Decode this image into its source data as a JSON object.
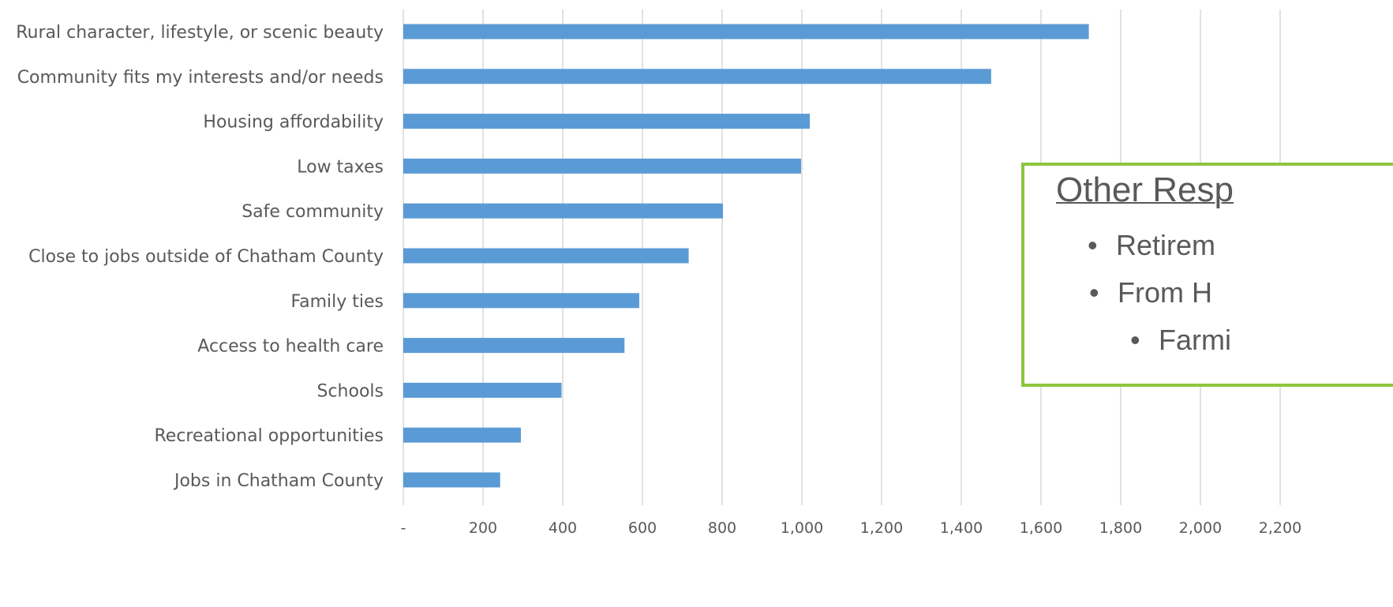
{
  "chart_data": {
    "type": "bar",
    "orientation": "horizontal",
    "categories": [
      "Rural character, lifestyle, or scenic beauty",
      "Community fits my interests and/or needs",
      "Housing affordability",
      "Low taxes",
      "Safe community",
      "Close to jobs outside of Chatham County",
      "Family ties",
      "Access to health care",
      "Schools",
      "Recreational opportunities",
      "Jobs in Chatham County"
    ],
    "values": [
      1720,
      1475,
      1020,
      998,
      802,
      716,
      592,
      555,
      397,
      295,
      243
    ],
    "xticks": [
      0,
      200,
      400,
      600,
      800,
      1000,
      1200,
      1400,
      1600,
      1800,
      2000,
      2200
    ],
    "xtick_labels": [
      "-",
      "200",
      "400",
      "600",
      "800",
      "1,000",
      "1,200",
      "1,400",
      "1,600",
      "1,800",
      "2,000",
      "2,200"
    ],
    "xlim": [
      0,
      2200
    ],
    "grid": "vertical",
    "bar_color": "#5b9bd5",
    "title": "",
    "xlabel": "",
    "ylabel": ""
  },
  "other_responses": {
    "title": "Other Resp",
    "items": [
      "Retirem",
      "From H",
      "Farmi"
    ],
    "border_color": "#8dc63f"
  }
}
